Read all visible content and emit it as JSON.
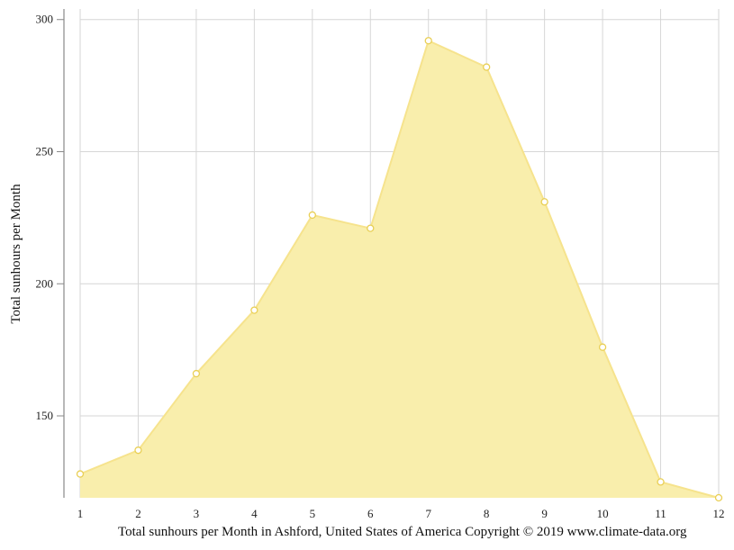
{
  "chart_data": {
    "type": "area",
    "x": [
      1,
      2,
      3,
      4,
      5,
      6,
      7,
      8,
      9,
      10,
      11,
      12
    ],
    "series": [
      {
        "values": [
          128,
          137,
          166,
          190,
          226,
          221,
          292,
          282,
          231,
          176,
          125,
          119
        ]
      }
    ],
    "xlabel": "",
    "ylabel": "Total sunhours per Month",
    "xlim": [
      1,
      12
    ],
    "ylim": [
      119,
      304
    ],
    "y_ticks": [
      150,
      200,
      250,
      300
    ],
    "x_ticks": [
      1,
      2,
      3,
      4,
      5,
      6,
      7,
      8,
      9,
      10,
      11,
      12
    ],
    "grid": true,
    "colors": {
      "fill": "#f9eeac",
      "line": "#f6e38d",
      "marker_fill": "#ffffff",
      "marker_stroke": "#e9cf55",
      "grid": "#d6d6d6",
      "axis": "#888888"
    }
  },
  "caption": "Total sunhours per Month in Ashford, United States of America Copyright © 2019 www.climate-data.org"
}
